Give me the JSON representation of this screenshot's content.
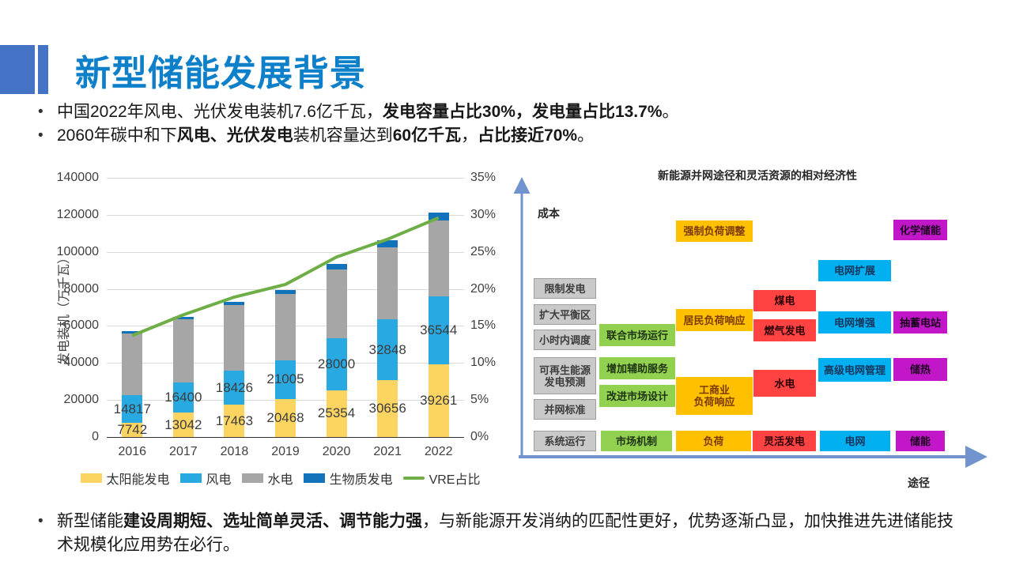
{
  "slide": {
    "title": "新型储能发展背景",
    "accent_color": "#0E7FC9",
    "decor_color": "#4472C4",
    "bullets_top": [
      {
        "segments": [
          {
            "t": "中国2022年风电、光伏发电装机7.6亿千瓦，",
            "b": false
          },
          {
            "t": "发电容量占比30%，发电量占比13.7%",
            "b": true
          },
          {
            "t": "。",
            "b": false
          }
        ]
      },
      {
        "segments": [
          {
            "t": "2060年碳中和下",
            "b": false
          },
          {
            "t": "风电、光伏发电",
            "b": true
          },
          {
            "t": "装机容量达到",
            "b": false
          },
          {
            "t": "60亿千瓦",
            "b": true
          },
          {
            "t": "，",
            "b": false
          },
          {
            "t": "占比接近70%",
            "b": true
          },
          {
            "t": "。",
            "b": false
          }
        ]
      }
    ],
    "bullet_bottom": {
      "segments": [
        {
          "t": "新型储能",
          "b": false
        },
        {
          "t": "建设周期短、选址简单灵活、调节能力强",
          "b": true
        },
        {
          "t": "，与新能源开发消纳的匹配性更好，优势逐渐凸显，加快推进先进储能技术规模化应用势在必行。",
          "b": false
        }
      ]
    }
  },
  "chart_data": {
    "type": "bar",
    "stacked": true,
    "categories": [
      "2016",
      "2017",
      "2018",
      "2019",
      "2020",
      "2021",
      "2022"
    ],
    "series": [
      {
        "name": "太阳能发电",
        "color": "#FBD462",
        "labels_visible": true,
        "values": [
          7742,
          13042,
          17463,
          20468,
          25354,
          30656,
          39261
        ]
      },
      {
        "name": "风电",
        "color": "#29A9E1",
        "labels_visible": true,
        "values": [
          14817,
          16400,
          18426,
          21005,
          28000,
          32848,
          36544
        ]
      },
      {
        "name": "水电",
        "color": "#A6A6A6",
        "labels_visible": false,
        "values": [
          33211,
          34119,
          35259,
          35804,
          37028,
          39092,
          41350
        ]
      },
      {
        "name": "生物质发电",
        "color": "#1272BA",
        "labels_visible": false,
        "values": [
          1213,
          1476,
          1781,
          2254,
          2952,
          3798,
          4132
        ]
      }
    ],
    "line_series": {
      "name": "VRE占比",
      "color": "#6FAE46",
      "values": [
        13.7,
        16.5,
        18.9,
        20.6,
        24.3,
        26.7,
        29.6
      ]
    },
    "title": "",
    "xlabel": "",
    "ylabel": "发电装机（万千瓦）",
    "y_left": {
      "min": 0,
      "max": 140000,
      "step": 20000
    },
    "y_right": {
      "min": 0,
      "max": 35,
      "step": 5,
      "suffix": "%"
    },
    "grid": true,
    "legend_position": "bottom"
  },
  "diagram": {
    "title": "新能源并网途径和灵活资源的相对经济性",
    "y_axis_label": "成本",
    "x_axis_label": "途径",
    "axis_color": "#7193CE",
    "groups": {
      "system": {
        "bg": "#C9C9C9",
        "border": "#9E9E9E",
        "text": "#3d3d3d"
      },
      "market": {
        "bg": "#92D050",
        "border": "#92D050",
        "text": "#1d3311"
      },
      "load": {
        "bg": "#FFC000",
        "border": "#FFC000",
        "text": "#7b3a00"
      },
      "flexgen": {
        "bg": "#FF4343",
        "border": "#FF4343",
        "text": "#2d0005"
      },
      "grid": {
        "bg": "#00B0F0",
        "border": "#00B0F0",
        "text": "#17365D"
      },
      "storage": {
        "bg": "#C117C9",
        "border": "#C117C9",
        "text": "#1c001f"
      }
    },
    "boxes": [
      {
        "id": "curtailment",
        "label": "限制发电",
        "group": "system"
      },
      {
        "id": "balancing-area",
        "label": "扩大平衡区",
        "group": "system"
      },
      {
        "id": "intra-hour-dispatch",
        "label": "小时内调度",
        "group": "system"
      },
      {
        "id": "re-forecast",
        "label": "可再生能源\n发电预测",
        "group": "system"
      },
      {
        "id": "grid-standards",
        "label": "并网标准",
        "group": "system"
      },
      {
        "id": "joint-market",
        "label": "联合市场运行",
        "group": "market"
      },
      {
        "id": "ancillary-services",
        "label": "增加辅助服务",
        "group": "market"
      },
      {
        "id": "market-design",
        "label": "改进市场设计",
        "group": "market"
      },
      {
        "id": "forced-load-adjustment",
        "label": "强制负荷调整",
        "group": "load"
      },
      {
        "id": "residential-dr",
        "label": "居民负荷响应",
        "group": "load"
      },
      {
        "id": "ci-dr",
        "label": "工商业\n负荷响应",
        "group": "load"
      },
      {
        "id": "coal-power",
        "label": "煤电",
        "group": "flexgen"
      },
      {
        "id": "gas-power",
        "label": "燃气发电",
        "group": "flexgen"
      },
      {
        "id": "hydro-power",
        "label": "水电",
        "group": "flexgen"
      },
      {
        "id": "grid-expansion",
        "label": "电网扩展",
        "group": "grid"
      },
      {
        "id": "grid-reinforcement",
        "label": "电网增强",
        "group": "grid"
      },
      {
        "id": "advanced-grid-mgmt",
        "label": "高级电网管理",
        "group": "grid"
      },
      {
        "id": "chemical-storage",
        "label": "化学储能",
        "group": "storage"
      },
      {
        "id": "pumped-hydro",
        "label": "抽蓄电站",
        "group": "storage"
      },
      {
        "id": "thermal-storage",
        "label": "储热",
        "group": "storage"
      },
      {
        "id": "hdr-system",
        "label": "系统运行",
        "group": "system",
        "header": true
      },
      {
        "id": "hdr-market",
        "label": "市场机制",
        "group": "market",
        "header": true
      },
      {
        "id": "hdr-load",
        "label": "负荷",
        "group": "load",
        "header": true
      },
      {
        "id": "hdr-flexgen",
        "label": "灵活发电",
        "group": "flexgen",
        "header": true
      },
      {
        "id": "hdr-grid",
        "label": "电网",
        "group": "grid",
        "header": true
      },
      {
        "id": "hdr-storage",
        "label": "储能",
        "group": "storage",
        "header": true
      }
    ]
  }
}
